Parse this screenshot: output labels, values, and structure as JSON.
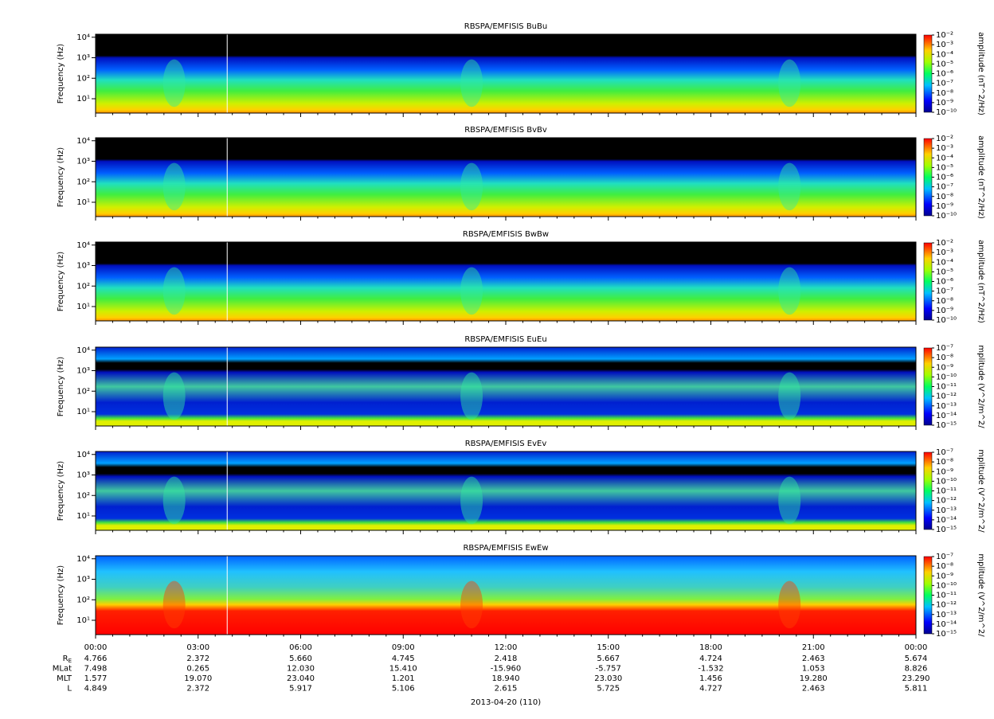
{
  "chart_data": [
    {
      "type": "spectrogram",
      "title": "RBSPA/EMFISIS  BuBu",
      "ylabel": "Frequency (Hz)",
      "yscale": "log",
      "ylim": [
        2,
        14000
      ],
      "yticks": [
        {
          "value": 10,
          "label": "10¹"
        },
        {
          "value": 100,
          "label": "10²"
        },
        {
          "value": 1000,
          "label": "10³"
        },
        {
          "value": 10000,
          "label": "10⁴"
        }
      ],
      "colorbar": {
        "label": "amplitude (nT^2/Hz)",
        "scale": "log",
        "lim": [
          1e-10,
          0.01
        ],
        "ticks": [
          {
            "value": 0.01,
            "label": "10⁻²"
          },
          {
            "value": 0.001,
            "label": "10⁻³"
          },
          {
            "value": 0.0001,
            "label": "10⁻⁴"
          },
          {
            "value": 1e-05,
            "label": "10⁻⁵"
          },
          {
            "value": 1e-06,
            "label": "10⁻⁶"
          },
          {
            "value": 1e-07,
            "label": "10⁻⁷"
          },
          {
            "value": 1e-08,
            "label": "10⁻⁸"
          },
          {
            "value": 1e-09,
            "label": "10⁻⁹"
          },
          {
            "value": 1e-10,
            "label": "10⁻¹⁰"
          }
        ]
      }
    },
    {
      "type": "spectrogram",
      "title": "RBSPA/EMFISIS  BvBv",
      "ylabel": "Frequency (Hz)",
      "yscale": "log",
      "ylim": [
        2,
        14000
      ],
      "yticks": [
        {
          "value": 10,
          "label": "10¹"
        },
        {
          "value": 100,
          "label": "10²"
        },
        {
          "value": 1000,
          "label": "10³"
        },
        {
          "value": 10000,
          "label": "10⁴"
        }
      ],
      "colorbar": {
        "label": "amplitude (nT^2/Hz)",
        "scale": "log",
        "lim": [
          1e-10,
          0.01
        ],
        "ticks": [
          {
            "value": 0.01,
            "label": "10⁻²"
          },
          {
            "value": 0.001,
            "label": "10⁻³"
          },
          {
            "value": 0.0001,
            "label": "10⁻⁴"
          },
          {
            "value": 1e-05,
            "label": "10⁻⁵"
          },
          {
            "value": 1e-06,
            "label": "10⁻⁶"
          },
          {
            "value": 1e-07,
            "label": "10⁻⁷"
          },
          {
            "value": 1e-08,
            "label": "10⁻⁸"
          },
          {
            "value": 1e-09,
            "label": "10⁻⁹"
          },
          {
            "value": 1e-10,
            "label": "10⁻¹⁰"
          }
        ]
      }
    },
    {
      "type": "spectrogram",
      "title": "RBSPA/EMFISIS  BwBw",
      "ylabel": "Frequency (Hz)",
      "yscale": "log",
      "ylim": [
        2,
        14000
      ],
      "yticks": [
        {
          "value": 10,
          "label": "10¹"
        },
        {
          "value": 100,
          "label": "10²"
        },
        {
          "value": 1000,
          "label": "10³"
        },
        {
          "value": 10000,
          "label": "10⁴"
        }
      ],
      "colorbar": {
        "label": "amplitude (nT^2/Hz)",
        "scale": "log",
        "lim": [
          1e-10,
          0.01
        ],
        "ticks": [
          {
            "value": 0.01,
            "label": "10⁻²"
          },
          {
            "value": 0.001,
            "label": "10⁻³"
          },
          {
            "value": 0.0001,
            "label": "10⁻⁴"
          },
          {
            "value": 1e-05,
            "label": "10⁻⁵"
          },
          {
            "value": 1e-06,
            "label": "10⁻⁶"
          },
          {
            "value": 1e-07,
            "label": "10⁻⁷"
          },
          {
            "value": 1e-08,
            "label": "10⁻⁸"
          },
          {
            "value": 1e-09,
            "label": "10⁻⁹"
          },
          {
            "value": 1e-10,
            "label": "10⁻¹⁰"
          }
        ]
      }
    },
    {
      "type": "spectrogram",
      "title": "RBSPA/EMFISIS  EuEu",
      "ylabel": "Frequency (Hz)",
      "yscale": "log",
      "ylim": [
        2,
        14000
      ],
      "yticks": [
        {
          "value": 10,
          "label": "10¹"
        },
        {
          "value": 100,
          "label": "10²"
        },
        {
          "value": 1000,
          "label": "10³"
        },
        {
          "value": 10000,
          "label": "10⁴"
        }
      ],
      "colorbar": {
        "label": "mplitude (V^2/m^2/",
        "scale": "log",
        "lim": [
          1e-15,
          1e-07
        ],
        "ticks": [
          {
            "value": 1e-07,
            "label": "10⁻⁷"
          },
          {
            "value": 1e-08,
            "label": "10⁻⁸"
          },
          {
            "value": 1e-09,
            "label": "10⁻⁹"
          },
          {
            "value": 1e-10,
            "label": "10⁻¹⁰"
          },
          {
            "value": 1e-11,
            "label": "10⁻¹¹"
          },
          {
            "value": 1e-12,
            "label": "10⁻¹²"
          },
          {
            "value": 1e-13,
            "label": "10⁻¹³"
          },
          {
            "value": 1e-14,
            "label": "10⁻¹⁴"
          },
          {
            "value": 1e-15,
            "label": "10⁻¹⁵"
          }
        ]
      }
    },
    {
      "type": "spectrogram",
      "title": "RBSPA/EMFISIS  EvEv",
      "ylabel": "Frequency (Hz)",
      "yscale": "log",
      "ylim": [
        2,
        14000
      ],
      "yticks": [
        {
          "value": 10,
          "label": "10¹"
        },
        {
          "value": 100,
          "label": "10²"
        },
        {
          "value": 1000,
          "label": "10³"
        },
        {
          "value": 10000,
          "label": "10⁴"
        }
      ],
      "colorbar": {
        "label": "mplitude (V^2/m^2/",
        "scale": "log",
        "lim": [
          1e-15,
          1e-07
        ],
        "ticks": [
          {
            "value": 1e-07,
            "label": "10⁻⁷"
          },
          {
            "value": 1e-08,
            "label": "10⁻⁸"
          },
          {
            "value": 1e-09,
            "label": "10⁻⁹"
          },
          {
            "value": 1e-10,
            "label": "10⁻¹⁰"
          },
          {
            "value": 1e-11,
            "label": "10⁻¹¹"
          },
          {
            "value": 1e-12,
            "label": "10⁻¹²"
          },
          {
            "value": 1e-13,
            "label": "10⁻¹³"
          },
          {
            "value": 1e-14,
            "label": "10⁻¹⁴"
          },
          {
            "value": 1e-15,
            "label": "10⁻¹⁵"
          }
        ]
      }
    },
    {
      "type": "spectrogram",
      "title": "RBSPA/EMFISIS  EwEw",
      "ylabel": "Frequency (Hz)",
      "yscale": "log",
      "ylim": [
        2,
        14000
      ],
      "yticks": [
        {
          "value": 10,
          "label": "10¹"
        },
        {
          "value": 100,
          "label": "10²"
        },
        {
          "value": 1000,
          "label": "10³"
        },
        {
          "value": 10000,
          "label": "10⁴"
        }
      ],
      "colorbar": {
        "label": "mplitude (V^2/m^2/",
        "scale": "log",
        "lim": [
          1e-15,
          1e-07
        ],
        "ticks": [
          {
            "value": 1e-07,
            "label": "10⁻⁷"
          },
          {
            "value": 1e-08,
            "label": "10⁻⁸"
          },
          {
            "value": 1e-09,
            "label": "10⁻⁹"
          },
          {
            "value": 1e-10,
            "label": "10⁻¹⁰"
          },
          {
            "value": 1e-11,
            "label": "10⁻¹¹"
          },
          {
            "value": 1e-12,
            "label": "10⁻¹²"
          },
          {
            "value": 1e-13,
            "label": "10⁻¹³"
          },
          {
            "value": 1e-14,
            "label": "10⁻¹⁴"
          },
          {
            "value": 1e-15,
            "label": "10⁻¹⁵"
          }
        ]
      }
    }
  ],
  "time_axis": {
    "xlim": [
      0,
      24
    ],
    "xticks": [
      {
        "value": 0,
        "label": "00:00"
      },
      {
        "value": 3,
        "label": "03:00"
      },
      {
        "value": 6,
        "label": "06:00"
      },
      {
        "value": 9,
        "label": "09:00"
      },
      {
        "value": 12,
        "label": "12:00"
      },
      {
        "value": 15,
        "label": "15:00"
      },
      {
        "value": 18,
        "label": "18:00"
      },
      {
        "value": 21,
        "label": "21:00"
      },
      {
        "value": 24,
        "label": "00:00"
      }
    ],
    "date": "2013-04-20 (110)"
  },
  "ephemeris": [
    {
      "label": "R",
      "subscript": "E",
      "values": [
        "4.766",
        "2.372",
        "5.660",
        "4.745",
        "2.418",
        "5.667",
        "4.724",
        "2.463",
        "5.674"
      ]
    },
    {
      "label": "MLat",
      "values": [
        "7.498",
        "0.265",
        "12.030",
        "15.410",
        "-15.960",
        "-5.757",
        "-1.532",
        "1.053",
        "8.826"
      ]
    },
    {
      "label": "MLT",
      "values": [
        "1.577",
        "19.070",
        "23.040",
        "1.201",
        "18.940",
        "23.030",
        "1.456",
        "19.280",
        "23.290"
      ]
    },
    {
      "label": "L",
      "values": [
        "4.849",
        "2.372",
        "5.917",
        "5.106",
        "2.615",
        "5.725",
        "4.727",
        "2.463",
        "5.811"
      ]
    }
  ]
}
